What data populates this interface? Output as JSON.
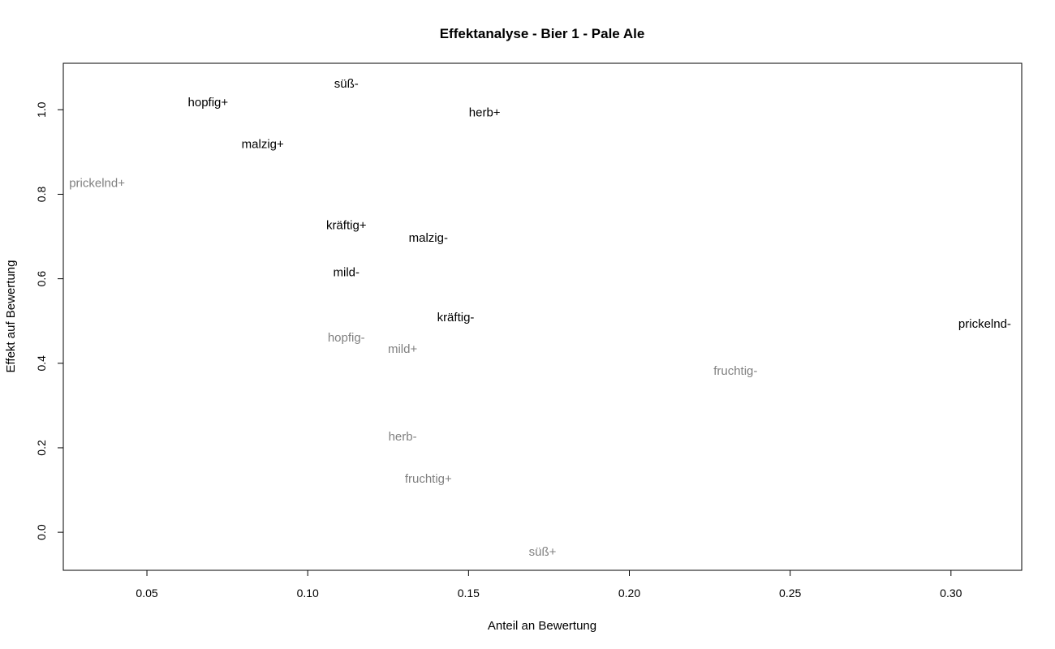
{
  "chart_data": {
    "type": "scatter",
    "title": "Effektanalyse - Bier 1 - Pale Ale",
    "xlabel": "Anteil an Bewertung",
    "ylabel": "Effekt auf Bewertung",
    "xlim": [
      0.024,
      0.322
    ],
    "ylim": [
      -0.09,
      1.11
    ],
    "xticks": [
      0.05,
      0.1,
      0.15,
      0.2,
      0.25,
      0.3
    ],
    "xtick_labels": [
      "0.05",
      "0.10",
      "0.15",
      "0.20",
      "0.25",
      "0.30"
    ],
    "yticks": [
      0.0,
      0.2,
      0.4,
      0.6,
      0.8,
      1.0
    ],
    "ytick_labels": [
      "0.0",
      "0.2",
      "0.4",
      "0.6",
      "0.8",
      "1.0"
    ],
    "grid": false,
    "colors": {
      "primary": "#000000",
      "secondary": "#808080"
    },
    "points": [
      {
        "label": "süß-",
        "x": 0.112,
        "y": 1.061,
        "group": "primary"
      },
      {
        "label": "hopfig+",
        "x": 0.069,
        "y": 1.017,
        "group": "primary"
      },
      {
        "label": "herb+",
        "x": 0.155,
        "y": 0.993,
        "group": "primary"
      },
      {
        "label": "malzig+",
        "x": 0.086,
        "y": 0.918,
        "group": "primary"
      },
      {
        "label": "prickelnd+",
        "x": 0.0345,
        "y": 0.826,
        "group": "secondary"
      },
      {
        "label": "kräftig+",
        "x": 0.112,
        "y": 0.726,
        "group": "primary"
      },
      {
        "label": "malzig-",
        "x": 0.1375,
        "y": 0.696,
        "group": "primary"
      },
      {
        "label": "mild-",
        "x": 0.112,
        "y": 0.615,
        "group": "primary"
      },
      {
        "label": "kräftig-",
        "x": 0.146,
        "y": 0.508,
        "group": "primary"
      },
      {
        "label": "prickelnd-",
        "x": 0.3105,
        "y": 0.493,
        "group": "primary"
      },
      {
        "label": "hopfig-",
        "x": 0.112,
        "y": 0.46,
        "group": "secondary"
      },
      {
        "label": "mild+",
        "x": 0.1295,
        "y": 0.433,
        "group": "secondary"
      },
      {
        "label": "fruchtig-",
        "x": 0.233,
        "y": 0.381,
        "group": "secondary"
      },
      {
        "label": "herb-",
        "x": 0.1295,
        "y": 0.226,
        "group": "secondary"
      },
      {
        "label": "fruchtig+",
        "x": 0.1375,
        "y": 0.126,
        "group": "secondary"
      },
      {
        "label": "süß+",
        "x": 0.173,
        "y": -0.047,
        "group": "secondary"
      }
    ]
  }
}
